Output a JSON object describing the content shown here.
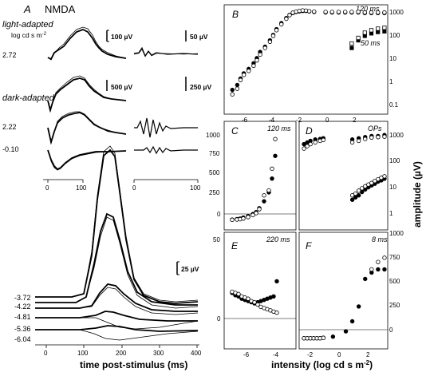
{
  "panels": {
    "A": {
      "letter": "A",
      "title": "NMDA"
    },
    "B": {
      "letter": "B",
      "labels": [
        "120 ms",
        "50 ms"
      ]
    },
    "C": {
      "letter": "C",
      "label": "120 ms"
    },
    "D": {
      "letter": "D",
      "label": "OPs"
    },
    "E": {
      "letter": "E",
      "label": "220 ms"
    },
    "F": {
      "letter": "F",
      "label": "8 ms"
    }
  },
  "panel_a": {
    "light_adapted_label": "light-adapted",
    "intensity_unit_label": "log cd s m",
    "intensity_unit_exp": "-2",
    "dark_adapted_label": "dark-adapted",
    "scale_bars": [
      "100 µV",
      "50 µV",
      "500 µV",
      "250 µV",
      "25 µV"
    ],
    "intensities": [
      "2.72",
      "2.22",
      "-0.10",
      "-3.72",
      "-4.22",
      "-4.81",
      "-5.36",
      "-6.04"
    ],
    "inset_ticks": [
      "0",
      "100",
      "0",
      "100"
    ],
    "x_ticks": [
      "0",
      "100",
      "200",
      "300",
      "400"
    ],
    "xlabel": "time post-stimulus (ms)"
  },
  "axes_labels": {
    "b_y_ticks": [
      "1000",
      "100",
      "10",
      "1",
      "0.1"
    ],
    "b_x_ticks": [
      "-6",
      "-4",
      "-2",
      "0",
      "2"
    ],
    "c_y_ticks": [
      "1000",
      "750",
      "500",
      "250",
      "0"
    ],
    "d_y_ticks": [
      "1000",
      "100",
      "10",
      "1"
    ],
    "e_y_ticks": [
      "50",
      "0"
    ],
    "f_y_ticks": [
      "1000",
      "750",
      "500",
      "250",
      "0"
    ],
    "e_x_ticks": [
      "-6",
      "-4"
    ],
    "f_x_ticks": [
      "-2",
      "0",
      "2"
    ],
    "ylabel_main": "amplitude (",
    "ylabel_unit": "µV",
    "ylabel_end": ")",
    "xlabel_main": "intensity (log cd s m",
    "xlabel_exp": "-2",
    "xlabel_end": ")"
  },
  "chart_data": [
    {
      "panel": "B",
      "type": "scatter",
      "y_scale": "log",
      "ylim": [
        0.1,
        2000
      ],
      "xlim": [
        -7,
        3
      ],
      "series": [
        {
          "marker": "filled",
          "x": [
            -6.5,
            -6.2,
            -6.0,
            -5.8,
            -5.5,
            -5.2,
            -5.0,
            -4.8,
            -4.5,
            -4.2,
            -4.0,
            -3.8,
            -3.5,
            -3.2,
            -3.0,
            -2.8,
            -2.6,
            -2.4,
            -2.2,
            -2.0,
            -1.8,
            -1.5,
            -0.8,
            -0.4,
            0.0,
            0.4,
            0.8,
            1.2,
            1.6,
            2.0,
            2.4,
            2.8
          ],
          "y": [
            0.9,
            1.4,
            2.5,
            4,
            6,
            10,
            16,
            28,
            45,
            80,
            130,
            220,
            380,
            600,
            800,
            950,
            1050,
            1100,
            1150,
            1150,
            1100,
            1050,
            1000,
            1000,
            1000,
            1000,
            1000,
            1000,
            950,
            950,
            950,
            950
          ]
        },
        {
          "marker": "open",
          "x": [
            -6.5,
            -6.2,
            -6.0,
            -5.8,
            -5.5,
            -5.2,
            -5.0,
            -4.8,
            -4.5,
            -4.2,
            -4.0,
            -3.8,
            -3.5,
            -3.2,
            -3.0,
            -2.8,
            -2.6,
            -2.4,
            -2.2,
            -2.0,
            -1.8,
            -1.5,
            -0.8,
            -0.4,
            0.0,
            0.4,
            0.8,
            1.2,
            1.6,
            2.0,
            2.4,
            2.8
          ],
          "y": [
            0.6,
            1.0,
            2.2,
            3.5,
            5,
            8,
            13,
            22,
            40,
            70,
            120,
            200,
            340,
            560,
            780,
            980,
            1080,
            1150,
            1200,
            1180,
            1120,
            1080,
            1050,
            1050,
            1050,
            1050,
            1050,
            1050,
            1000,
            1000,
            1000,
            1000
          ]
        },
        {
          "marker": "filled-50",
          "x": [
            0.8,
            1.2,
            1.6,
            2.0,
            2.4,
            2.8
          ],
          "y": [
            40,
            80,
            120,
            150,
            170,
            180
          ]
        },
        {
          "marker": "open-50",
          "x": [
            0.8,
            1.2,
            1.6,
            2.0,
            2.4,
            2.8
          ],
          "y": [
            60,
            100,
            160,
            200,
            230,
            250
          ]
        }
      ]
    },
    {
      "panel": "C",
      "type": "scatter",
      "ylim": [
        -100,
        1000
      ],
      "xlim": [
        -7,
        -2.5
      ],
      "series": [
        {
          "marker": "filled",
          "x": [
            -6.5,
            -6.2,
            -6.0,
            -5.8,
            -5.5,
            -5.2,
            -5.0,
            -4.8,
            -4.5,
            -4.2,
            -4.0,
            -3.8
          ],
          "y": [
            5,
            10,
            15,
            25,
            40,
            60,
            80,
            120,
            190,
            280,
            420,
            650
          ]
        },
        {
          "marker": "open",
          "x": [
            -6.5,
            -6.2,
            -6.0,
            -5.8,
            -5.5,
            -5.2,
            -5.0,
            -4.8,
            -4.5,
            -4.2,
            -4.0,
            -3.8
          ],
          "y": [
            2,
            5,
            8,
            15,
            30,
            50,
            70,
            110,
            250,
            300,
            520,
            820
          ]
        }
      ]
    },
    {
      "panel": "D",
      "type": "scatter",
      "y_scale": "log",
      "ylim": [
        0.5,
        2000
      ],
      "xlim": [
        -2.5,
        3
      ],
      "series": [
        {
          "marker": "filled",
          "x": [
            -2.2,
            -2.0,
            -1.8,
            -1.5,
            -1.2,
            -1.0
          ],
          "y": [
            350,
            400,
            450,
            500,
            520,
            550
          ]
        },
        {
          "marker": "open",
          "x": [
            -2.2,
            -2.0,
            -1.8,
            -1.5,
            -1.2,
            -1.0
          ],
          "y": [
            250,
            300,
            350,
            400,
            450,
            480
          ]
        },
        {
          "marker": "filled",
          "x": [
            0.8,
            1.2,
            1.6,
            2.0,
            2.4,
            2.8
          ],
          "y": [
            500,
            550,
            600,
            650,
            650,
            700
          ]
        },
        {
          "marker": "open",
          "x": [
            0.8,
            1.2,
            1.6,
            2.0,
            2.4,
            2.8
          ],
          "y": [
            400,
            450,
            520,
            580,
            600,
            620
          ]
        },
        {
          "marker": "filled",
          "x": [
            0.8,
            1.0,
            1.2,
            1.4,
            1.6,
            1.8,
            2.0,
            2.2,
            2.4,
            2.6,
            2.8
          ],
          "y": [
            5,
            6,
            7,
            9,
            11,
            13,
            15,
            17,
            20,
            22,
            25
          ]
        },
        {
          "marker": "open",
          "x": [
            0.8,
            1.0,
            1.2,
            1.4,
            1.6,
            1.8,
            2.0,
            2.2,
            2.4,
            2.6,
            2.8
          ],
          "y": [
            7,
            8,
            10,
            12,
            14,
            16,
            18,
            21,
            24,
            27,
            30
          ]
        }
      ]
    },
    {
      "panel": "E",
      "type": "scatter",
      "ylim": [
        -50,
        50
      ],
      "xlim": [
        -7,
        -2.5
      ],
      "series": [
        {
          "marker": "filled",
          "x": [
            -6.5,
            -6.3,
            -6.1,
            -5.9,
            -5.7,
            -5.5,
            -5.3,
            -5.1,
            -4.9,
            -4.7,
            -4.5,
            -4.3,
            -4.1,
            -3.9,
            -3.7
          ],
          "y": [
            -2,
            -4,
            -5,
            -7,
            -8,
            -9,
            -10,
            -11,
            -10,
            -9,
            -8,
            -7,
            -6,
            -5,
            8
          ]
        },
        {
          "marker": "open",
          "x": [
            -6.5,
            -6.3,
            -6.1,
            -5.9,
            -5.7,
            -5.5,
            -5.3,
            -5.1,
            -4.9,
            -4.7,
            -4.5,
            -4.3,
            -4.1,
            -3.9,
            -3.7
          ],
          "y": [
            -1,
            -2,
            -3,
            -5,
            -6,
            -7,
            -9,
            -10,
            -12,
            -14,
            -15,
            -16,
            -17,
            -18,
            -19
          ]
        }
      ]
    },
    {
      "panel": "F",
      "type": "scatter",
      "ylim": [
        -100,
        1000
      ],
      "xlim": [
        -2.5,
        3
      ],
      "series": [
        {
          "marker": "filled",
          "x": [
            -2.2,
            -2.0,
            -1.8,
            -1.6,
            -1.4,
            -1.2,
            -1.0,
            -0.4,
            0.4,
            0.8,
            1.2,
            1.6,
            2.0,
            2.4,
            2.8
          ],
          "y": [
            0,
            0,
            0,
            0,
            0,
            0,
            5,
            15,
            65,
            160,
            300,
            560,
            620,
            650,
            650
          ]
        },
        {
          "marker": "open",
          "x": [
            -2.2,
            -2.0,
            -1.8,
            -1.6,
            -1.4,
            -1.2,
            -1.0
          ],
          "y": [
            0,
            0,
            0,
            0,
            0,
            0,
            3
          ]
        },
        {
          "marker": "open",
          "x": [
            2.0,
            2.4,
            2.8
          ],
          "y": [
            650,
            720,
            760
          ]
        }
      ]
    }
  ]
}
